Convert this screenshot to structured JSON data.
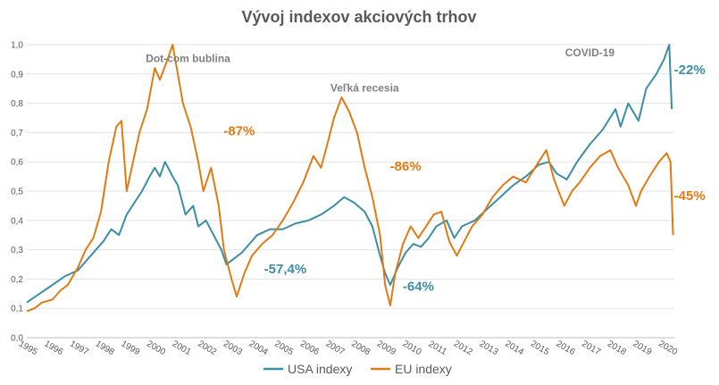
{
  "chart_data": {
    "type": "line",
    "title": "Vývoj indexov akciových trhov",
    "xlabel": "",
    "ylabel": "",
    "ylim": [
      0,
      1
    ],
    "xlim": [
      1995,
      2020.3
    ],
    "y_ticks": [
      "0,0",
      "0,1",
      "0,2",
      "0,3",
      "0,4",
      "0,5",
      "0,6",
      "0,7",
      "0,8",
      "0,9",
      "1,0"
    ],
    "x_ticks": [
      "1995",
      "1996",
      "1997",
      "1998",
      "1999",
      "2000",
      "2001",
      "2002",
      "2003",
      "2004",
      "2005",
      "2006",
      "2007",
      "2008",
      "2009",
      "2010",
      "2011",
      "2012",
      "2013",
      "2014",
      "2015",
      "2016",
      "2017",
      "2018",
      "2019",
      "2020"
    ],
    "grid": "horizontal",
    "legend": "bottom",
    "colors": {
      "usa": "#3a8ea6",
      "eu": "#e07b13",
      "annotation": "#7f7f7f"
    },
    "series": [
      {
        "name": "USA indexy",
        "color": "#3a8ea6",
        "points": [
          [
            1995.0,
            0.12
          ],
          [
            1995.5,
            0.15
          ],
          [
            1996.0,
            0.18
          ],
          [
            1996.5,
            0.21
          ],
          [
            1997.0,
            0.23
          ],
          [
            1997.5,
            0.28
          ],
          [
            1998.0,
            0.33
          ],
          [
            1998.3,
            0.37
          ],
          [
            1998.6,
            0.35
          ],
          [
            1998.9,
            0.42
          ],
          [
            1999.2,
            0.46
          ],
          [
            1999.5,
            0.5
          ],
          [
            1999.8,
            0.55
          ],
          [
            2000.0,
            0.58
          ],
          [
            2000.2,
            0.55
          ],
          [
            2000.4,
            0.6
          ],
          [
            2000.7,
            0.55
          ],
          [
            2000.9,
            0.52
          ],
          [
            2001.2,
            0.42
          ],
          [
            2001.5,
            0.45
          ],
          [
            2001.7,
            0.38
          ],
          [
            2002.0,
            0.4
          ],
          [
            2002.3,
            0.35
          ],
          [
            2002.6,
            0.3
          ],
          [
            2002.8,
            0.25
          ],
          [
            2003.1,
            0.27
          ],
          [
            2003.4,
            0.29
          ],
          [
            2003.7,
            0.32
          ],
          [
            2004.0,
            0.35
          ],
          [
            2004.5,
            0.37
          ],
          [
            2005.0,
            0.37
          ],
          [
            2005.5,
            0.39
          ],
          [
            2006.0,
            0.4
          ],
          [
            2006.5,
            0.42
          ],
          [
            2007.0,
            0.45
          ],
          [
            2007.4,
            0.48
          ],
          [
            2007.8,
            0.46
          ],
          [
            2008.2,
            0.43
          ],
          [
            2008.5,
            0.38
          ],
          [
            2008.8,
            0.28
          ],
          [
            2009.0,
            0.22
          ],
          [
            2009.2,
            0.18
          ],
          [
            2009.5,
            0.24
          ],
          [
            2009.8,
            0.29
          ],
          [
            2010.1,
            0.32
          ],
          [
            2010.4,
            0.31
          ],
          [
            2010.7,
            0.34
          ],
          [
            2011.0,
            0.38
          ],
          [
            2011.4,
            0.4
          ],
          [
            2011.7,
            0.34
          ],
          [
            2012.0,
            0.38
          ],
          [
            2012.5,
            0.4
          ],
          [
            2013.0,
            0.44
          ],
          [
            2013.5,
            0.48
          ],
          [
            2014.0,
            0.52
          ],
          [
            2014.5,
            0.55
          ],
          [
            2015.0,
            0.59
          ],
          [
            2015.4,
            0.6
          ],
          [
            2015.7,
            0.56
          ],
          [
            2016.1,
            0.54
          ],
          [
            2016.5,
            0.6
          ],
          [
            2017.0,
            0.66
          ],
          [
            2017.5,
            0.71
          ],
          [
            2018.0,
            0.78
          ],
          [
            2018.2,
            0.72
          ],
          [
            2018.5,
            0.8
          ],
          [
            2018.9,
            0.74
          ],
          [
            2019.2,
            0.85
          ],
          [
            2019.6,
            0.9
          ],
          [
            2019.9,
            0.95
          ],
          [
            2020.1,
            1.0
          ],
          [
            2020.2,
            0.78
          ]
        ]
      },
      {
        "name": "EU indexy",
        "color": "#e07b13",
        "points": [
          [
            1995.0,
            0.09
          ],
          [
            1995.3,
            0.1
          ],
          [
            1995.6,
            0.12
          ],
          [
            1996.0,
            0.13
          ],
          [
            1996.3,
            0.16
          ],
          [
            1996.6,
            0.18
          ],
          [
            1997.0,
            0.24
          ],
          [
            1997.3,
            0.3
          ],
          [
            1997.6,
            0.34
          ],
          [
            1997.9,
            0.43
          ],
          [
            1998.2,
            0.6
          ],
          [
            1998.5,
            0.72
          ],
          [
            1998.7,
            0.74
          ],
          [
            1998.9,
            0.5
          ],
          [
            1999.1,
            0.58
          ],
          [
            1999.4,
            0.7
          ],
          [
            1999.7,
            0.78
          ],
          [
            2000.0,
            0.92
          ],
          [
            2000.2,
            0.88
          ],
          [
            2000.5,
            0.95
          ],
          [
            2000.7,
            1.0
          ],
          [
            2000.9,
            0.9
          ],
          [
            2001.1,
            0.8
          ],
          [
            2001.4,
            0.72
          ],
          [
            2001.7,
            0.6
          ],
          [
            2001.9,
            0.5
          ],
          [
            2002.2,
            0.58
          ],
          [
            2002.5,
            0.45
          ],
          [
            2002.7,
            0.3
          ],
          [
            2003.0,
            0.2
          ],
          [
            2003.2,
            0.14
          ],
          [
            2003.5,
            0.22
          ],
          [
            2003.8,
            0.28
          ],
          [
            2004.2,
            0.32
          ],
          [
            2004.6,
            0.35
          ],
          [
            2005.0,
            0.4
          ],
          [
            2005.4,
            0.46
          ],
          [
            2005.8,
            0.53
          ],
          [
            2006.2,
            0.62
          ],
          [
            2006.5,
            0.58
          ],
          [
            2006.8,
            0.68
          ],
          [
            2007.0,
            0.75
          ],
          [
            2007.3,
            0.82
          ],
          [
            2007.6,
            0.77
          ],
          [
            2007.9,
            0.7
          ],
          [
            2008.2,
            0.58
          ],
          [
            2008.5,
            0.48
          ],
          [
            2008.8,
            0.35
          ],
          [
            2009.0,
            0.18
          ],
          [
            2009.2,
            0.11
          ],
          [
            2009.4,
            0.22
          ],
          [
            2009.7,
            0.32
          ],
          [
            2010.0,
            0.38
          ],
          [
            2010.3,
            0.34
          ],
          [
            2010.6,
            0.38
          ],
          [
            2010.9,
            0.42
          ],
          [
            2011.2,
            0.43
          ],
          [
            2011.5,
            0.33
          ],
          [
            2011.8,
            0.28
          ],
          [
            2012.1,
            0.33
          ],
          [
            2012.4,
            0.38
          ],
          [
            2012.8,
            0.42
          ],
          [
            2013.2,
            0.48
          ],
          [
            2013.6,
            0.52
          ],
          [
            2014.0,
            0.55
          ],
          [
            2014.5,
            0.53
          ],
          [
            2015.0,
            0.6
          ],
          [
            2015.3,
            0.64
          ],
          [
            2015.6,
            0.54
          ],
          [
            2016.0,
            0.45
          ],
          [
            2016.3,
            0.5
          ],
          [
            2016.6,
            0.53
          ],
          [
            2017.0,
            0.58
          ],
          [
            2017.4,
            0.62
          ],
          [
            2017.8,
            0.64
          ],
          [
            2018.1,
            0.58
          ],
          [
            2018.5,
            0.52
          ],
          [
            2018.8,
            0.45
          ],
          [
            2019.0,
            0.5
          ],
          [
            2019.4,
            0.56
          ],
          [
            2019.7,
            0.6
          ],
          [
            2020.0,
            0.63
          ],
          [
            2020.15,
            0.6
          ],
          [
            2020.25,
            0.35
          ]
        ]
      }
    ],
    "annotations": [
      {
        "text": "Dot-com bublina",
        "x": 2001.3,
        "y": 0.94,
        "style": "label"
      },
      {
        "text": "Veľká recesia",
        "x": 2008.2,
        "y": 0.84,
        "style": "label"
      },
      {
        "text": "COVID-19",
        "x": 2017.0,
        "y": 0.96,
        "style": "label"
      },
      {
        "text": "-87%",
        "x": 2003.3,
        "y": 0.69,
        "style": "eu"
      },
      {
        "text": "-57,4%",
        "x": 2005.1,
        "y": 0.22,
        "style": "usa"
      },
      {
        "text": "-86%",
        "x": 2009.8,
        "y": 0.57,
        "style": "eu"
      },
      {
        "text": "-64%",
        "x": 2010.3,
        "y": 0.16,
        "style": "usa"
      },
      {
        "text": "-22%",
        "x": 2020.9,
        "y": 0.9,
        "style": "usa"
      },
      {
        "text": "-45%",
        "x": 2020.9,
        "y": 0.47,
        "style": "eu"
      }
    ]
  }
}
